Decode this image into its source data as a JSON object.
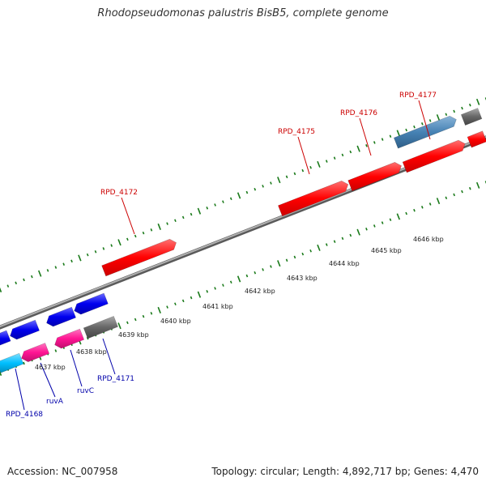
{
  "title": "Rhodopseudomonas palustris BisB5, complete genome",
  "footer": {
    "accession": "Accession: NC_007958",
    "summary": "Topology: circular; Length: 4,892,717 bp; Genes: 4,470"
  },
  "colors": {
    "forward_gene": "#ff0000",
    "reverse_gene": "#0000ee",
    "reverse_pink": "#ff1493",
    "reverse_cyan": "#00bfff",
    "steelblue": "#4682b4",
    "gray_gene": "#666666",
    "backbone": "#888888",
    "tick": "#1a7a1a",
    "forward_label": "#cc0000",
    "reverse_label": "#0000aa"
  },
  "scale_labels": [
    "4637 kbp",
    "4638 kbp",
    "4639 kbp",
    "4640 kbp",
    "4641 kbp",
    "4642 kbp",
    "4643 kbp",
    "4644 kbp",
    "4645 kbp",
    "4646 kbp"
  ],
  "forward_labels": [
    "RPD_4172",
    "RPD_4175",
    "RPD_4176",
    "RPD_4177"
  ],
  "reverse_labels": [
    "RPD_4168",
    "ruvA",
    "ruvC",
    "RPD_4171"
  ]
}
